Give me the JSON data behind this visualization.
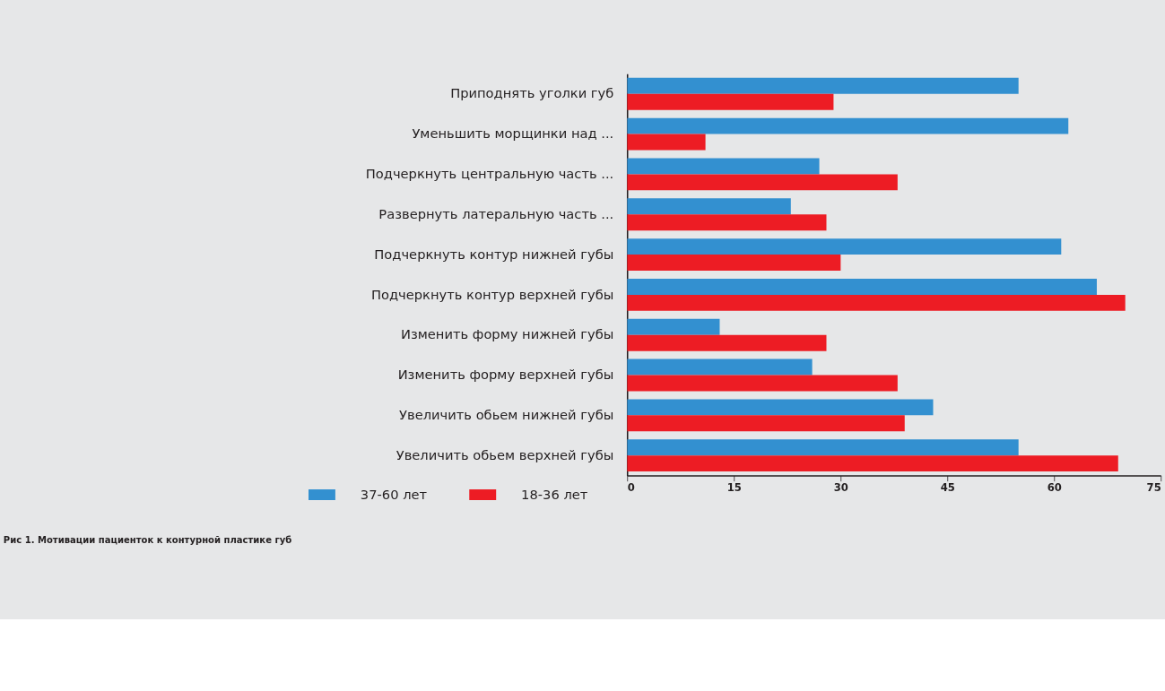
{
  "chart_data": {
    "type": "bar",
    "orientation": "horizontal",
    "title": "Рис 1. Мотивации пациенток к контурной пластике губ",
    "categories": [
      "Приподнять уголки губ",
      "Уменьшить морщинки над ...",
      "Подчеркнуть центральную часть ...",
      "Развернуть латеральную часть ...",
      "Подчеркнуть контур нижней губы",
      "Подчеркнуть контур верхней губы",
      "Изменить форму нижней губы",
      "Изменить форму верхней губы",
      "Увеличить обьем нижней губы",
      "Увеличить обьем верхней губы"
    ],
    "series": [
      {
        "name": "37-60 лет",
        "color": "#3390d0",
        "values": [
          55,
          62,
          27,
          23,
          61,
          66,
          13,
          26,
          43,
          55
        ]
      },
      {
        "name": "18-36 лет",
        "color": "#ed1c24",
        "values": [
          29,
          11,
          38,
          28,
          30,
          70,
          28,
          38,
          39,
          69
        ]
      }
    ],
    "xlim": [
      0,
      75
    ],
    "xticks": [
      0,
      15,
      30,
      45,
      60,
      75
    ],
    "grid": false,
    "legend": "bottom left"
  }
}
